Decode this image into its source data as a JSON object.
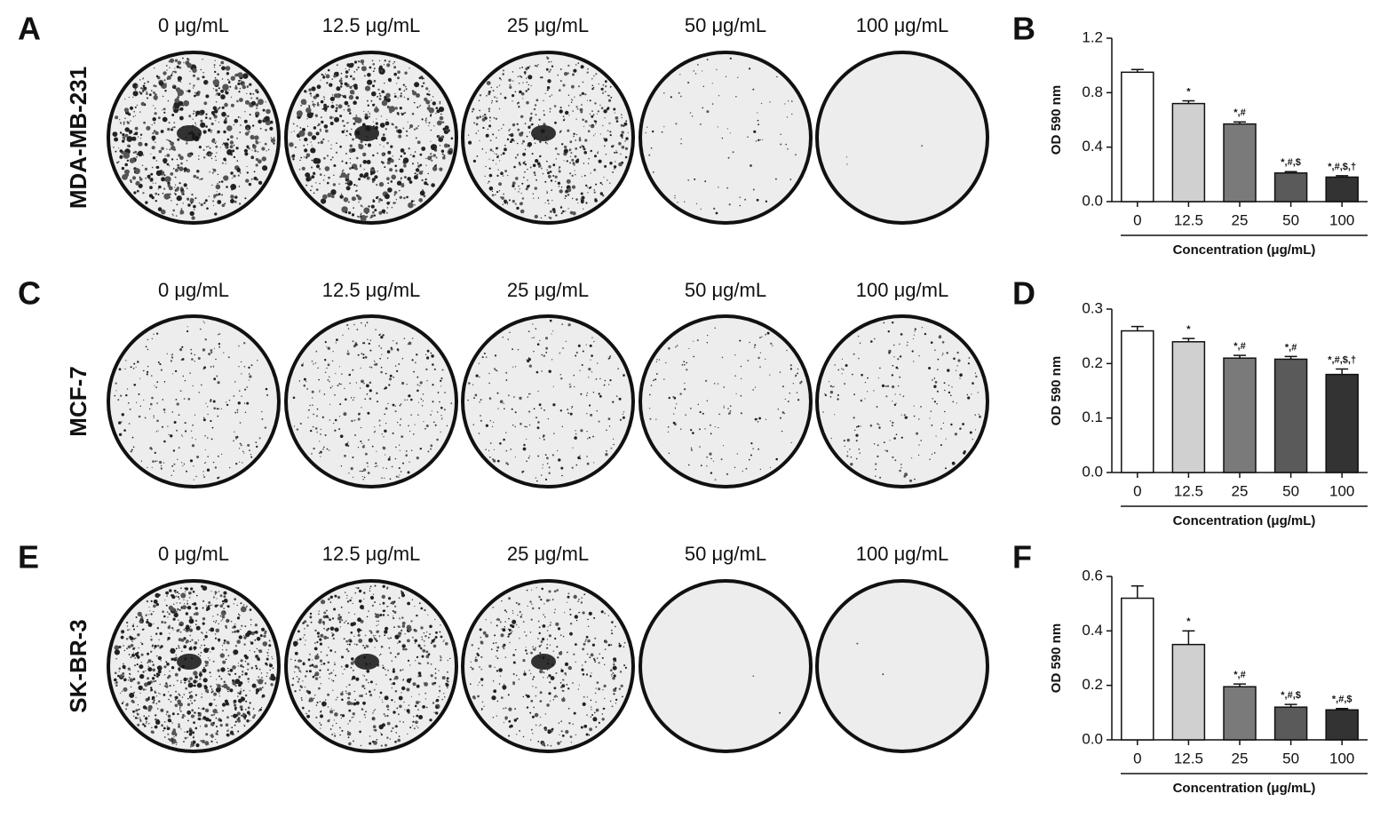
{
  "plates": {
    "rows": [
      {
        "panel": "A",
        "cell_line": "MDA-MB-231",
        "concentrations": [
          "0 μg/mL",
          "12.5 μg/mL",
          "25 μg/mL",
          "50 μg/mL",
          "100 μg/mL"
        ]
      },
      {
        "panel": "C",
        "cell_line": "MCF-7",
        "concentrations": [
          "0 μg/mL",
          "12.5 μg/mL",
          "25 μg/mL",
          "50 μg/mL",
          "100 μg/mL"
        ]
      },
      {
        "panel": "E",
        "cell_line": "SK-BR-3",
        "concentrations": [
          "0 μg/mL",
          "12.5 μg/mL",
          "25 μg/mL",
          "50 μg/mL",
          "100 μg/mL"
        ]
      }
    ]
  },
  "chart_data": [
    {
      "type": "bar",
      "panel": "B",
      "ylabel": "OD 590 nm",
      "xlabel": "Concentration (μg/mL)",
      "categories": [
        "0",
        "12.5",
        "25",
        "50",
        "100"
      ],
      "values": [
        0.95,
        0.72,
        0.57,
        0.21,
        0.18
      ],
      "errors": [
        0.02,
        0.02,
        0.015,
        0.01,
        0.01
      ],
      "annotations": [
        null,
        "*",
        "*,#",
        "*,#,$",
        "*,#,$,†"
      ],
      "colors": [
        "#ffffff",
        "#d0d0d0",
        "#7a7a7a",
        "#5a5a5a",
        "#333333"
      ],
      "ylim": [
        0,
        1.2
      ],
      "yticks": [
        {
          "value": 0,
          "label": "0.0"
        },
        0.4,
        0.8,
        1.2
      ]
    },
    {
      "type": "bar",
      "panel": "D",
      "ylabel": "OD 590 nm",
      "xlabel": "Concentration (μg/mL)",
      "categories": [
        "0",
        "12.5",
        "25",
        "50",
        "100"
      ],
      "values": [
        0.26,
        0.24,
        0.21,
        0.208,
        0.18
      ],
      "errors": [
        0.008,
        0.006,
        0.005,
        0.005,
        0.01
      ],
      "annotations": [
        null,
        "*",
        "*,#",
        "*,#",
        "*,#,$,†"
      ],
      "colors": [
        "#ffffff",
        "#d0d0d0",
        "#7a7a7a",
        "#5a5a5a",
        "#333333"
      ],
      "ylim": [
        0,
        0.3
      ],
      "yticks": [
        {
          "value": 0,
          "label": "0.0"
        },
        0.1,
        0.2,
        0.3
      ]
    },
    {
      "type": "bar",
      "panel": "F",
      "ylabel": "OD 590 nm",
      "xlabel": "Concentration (μg/mL)",
      "categories": [
        "0",
        "12.5",
        "25",
        "50",
        "100"
      ],
      "values": [
        0.52,
        0.35,
        0.195,
        0.12,
        0.11
      ],
      "errors": [
        0.045,
        0.05,
        0.01,
        0.01,
        0.005
      ],
      "annotations": [
        null,
        "*",
        "*,#",
        "*,#,$",
        "*,#,$"
      ],
      "colors": [
        "#ffffff",
        "#d0d0d0",
        "#7a7a7a",
        "#5a5a5a",
        "#333333"
      ],
      "ylim": [
        0,
        0.6
      ],
      "yticks": [
        {
          "value": 0,
          "label": "0.0"
        },
        0.2,
        0.4,
        0.6
      ]
    }
  ]
}
